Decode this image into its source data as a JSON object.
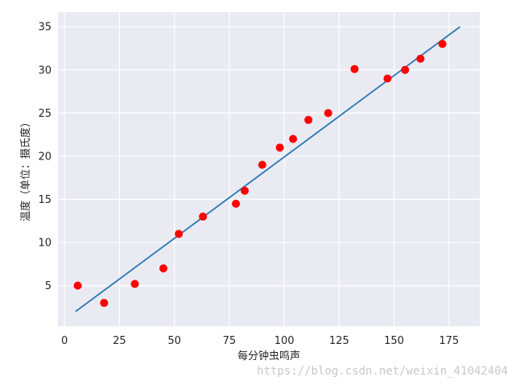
{
  "chart_data": {
    "type": "scatter",
    "xlabel": "每分钟虫鸣声",
    "ylabel": "温度（单位：摄氏度）",
    "xlim": [
      -3,
      189
    ],
    "ylim": [
      0.3,
      36.7
    ],
    "xticks": [
      0,
      25,
      50,
      75,
      100,
      125,
      150,
      175
    ],
    "yticks": [
      5,
      10,
      15,
      20,
      25,
      30,
      35
    ],
    "grid": true,
    "background": "#eaeaf2",
    "grid_color": "#ffffff",
    "series": [
      {
        "kind": "points",
        "color": "#ff0000",
        "points": [
          [
            6,
            5
          ],
          [
            18,
            3
          ],
          [
            32,
            5.2
          ],
          [
            45,
            7
          ],
          [
            52,
            11
          ],
          [
            63,
            13
          ],
          [
            78,
            14.5
          ],
          [
            82,
            16
          ],
          [
            90,
            19
          ],
          [
            98,
            21
          ],
          [
            104,
            22
          ],
          [
            111,
            24.2
          ],
          [
            120,
            25
          ],
          [
            132,
            30.1
          ],
          [
            147,
            29
          ],
          [
            155,
            30
          ],
          [
            162,
            31.3
          ],
          [
            172,
            33
          ]
        ]
      },
      {
        "kind": "line",
        "color": "#2878b5",
        "points": [
          [
            5,
            2
          ],
          [
            180,
            35
          ]
        ]
      }
    ]
  },
  "watermark": "https://blog.csdn.net/weixin_41042404"
}
